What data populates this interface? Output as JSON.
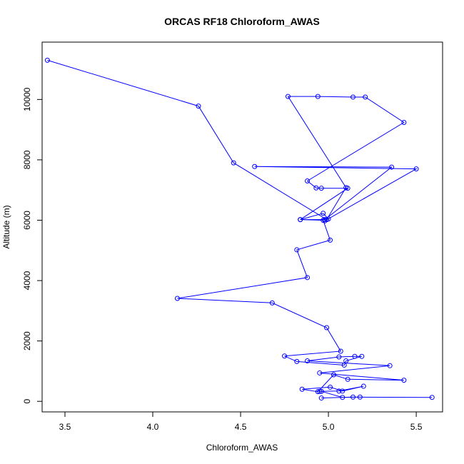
{
  "chart_data": {
    "type": "line",
    "title": "ORCAS RF18 Chloroform_AWAS",
    "xlabel": "Chloroform_AWAS",
    "ylabel": "Altitude (m)",
    "xlim": [
      3.37,
      5.65
    ],
    "ylim": [
      -350,
      11900
    ],
    "xticks": [
      "3.5",
      "4.0",
      "4.5",
      "5.0",
      "5.5"
    ],
    "yticks": [
      "0",
      "2000",
      "4000",
      "6000",
      "8000",
      "10000"
    ],
    "grid": false,
    "legend": "none",
    "series": [
      {
        "color": "#0000ff",
        "marker": "open-circle",
        "x": [
          3.4,
          4.26,
          4.46,
          4.99,
          5.1,
          4.77,
          4.94,
          5.14,
          5.21,
          5.43,
          4.88,
          4.93,
          4.96,
          5.11,
          4.84,
          4.97,
          5.0,
          4.98,
          5.5,
          4.58,
          5.36,
          4.98,
          4.84,
          4.97,
          5.01,
          4.82,
          4.88,
          4.14,
          4.68,
          4.99,
          5.07,
          4.75,
          4.82,
          5.09,
          5.1,
          5.19,
          5.15,
          5.06,
          4.88,
          5.35,
          4.95,
          5.43,
          5.11,
          5.03,
          4.94,
          4.85,
          5.01,
          5.08,
          5.2,
          5.06,
          4.95,
          4.96,
          5.08,
          5.18,
          5.59,
          5.14,
          4.96
        ],
        "y": [
          11300,
          9780,
          7900,
          6020,
          7080,
          10100,
          10100,
          10080,
          10080,
          9240,
          7300,
          7070,
          7060,
          7060,
          6020,
          6230,
          6040,
          5980,
          7700,
          7780,
          7760,
          6020,
          6020,
          6000,
          5340,
          5020,
          4100,
          3410,
          3260,
          2440,
          1660,
          1500,
          1320,
          1200,
          1340,
          1490,
          1490,
          1470,
          1340,
          1180,
          940,
          700,
          730,
          880,
          320,
          400,
          470,
          340,
          500,
          340,
          330,
          330,
          130,
          140,
          130,
          140,
          110
        ]
      }
    ]
  }
}
